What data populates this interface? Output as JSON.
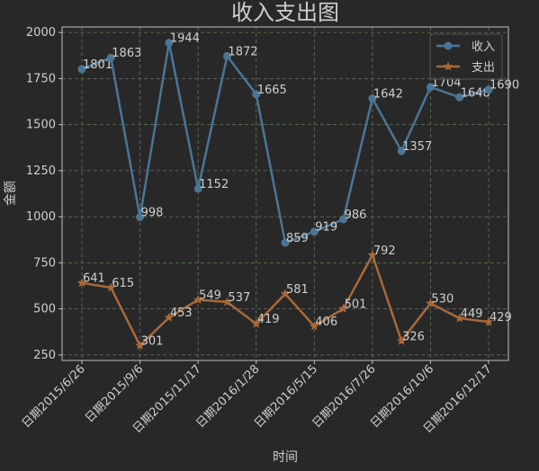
{
  "chart_data": {
    "type": "line",
    "title": "收入支出图",
    "xlabel": "时间",
    "ylabel": "金额",
    "ylim": [
      220,
      2030
    ],
    "y_ticks": [
      250,
      500,
      750,
      1000,
      1250,
      1500,
      1750,
      2000
    ],
    "x_tick_labels": [
      "日期2015/6/26",
      "日期2015/9/6",
      "日期2015/11/17",
      "日期2016/1/28",
      "日期2016/5/15",
      "日期2016/7/26",
      "日期2016/10/6",
      "日期2016/12/17"
    ],
    "grid": true,
    "legend_position": "top-right",
    "series": [
      {
        "name": "收入",
        "color": "#4a7595",
        "marker": "circle",
        "values": [
          1801,
          1863,
          998,
          1944,
          1152,
          1872,
          1665,
          859,
          919,
          986,
          1642,
          1357,
          1704,
          1648,
          1690
        ]
      },
      {
        "name": "支出",
        "color": "#a8693a",
        "marker": "star",
        "values": [
          641,
          615,
          301,
          453,
          549,
          537,
          419,
          581,
          406,
          501,
          792,
          326,
          530,
          449,
          429
        ]
      }
    ],
    "colors": {
      "background": "#282828",
      "grid": "#5e7a52",
      "axis": "#c0c0c0",
      "text": "#cfcfcf"
    }
  }
}
